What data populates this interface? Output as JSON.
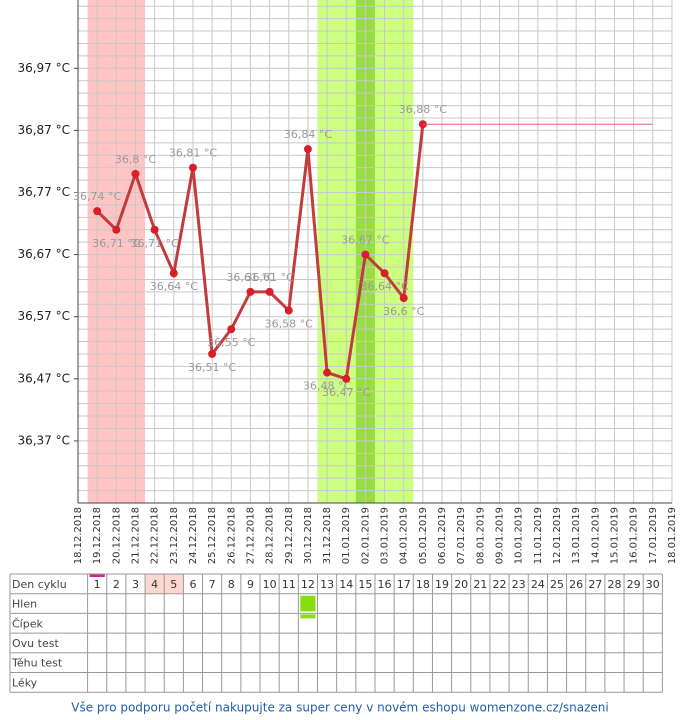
{
  "chart_data": {
    "type": "line",
    "x": [
      "18.12.2018",
      "19.12.2018",
      "20.12.2018",
      "21.12.2018",
      "22.12.2018",
      "23.12.2018",
      "24.12.2018",
      "25.12.2018",
      "26.12.2018",
      "27.12.2018",
      "28.12.2018",
      "29.12.2018",
      "30.12.2018",
      "31.12.2018",
      "01.01.2019",
      "02.01.2019",
      "03.01.2019",
      "04.01.2019",
      "05.01.2019",
      "06.01.2019",
      "07.01.2019",
      "08.01.2019",
      "09.01.2019",
      "10.01.2019",
      "11.01.2019",
      "12.01.2019",
      "13.01.2019",
      "14.01.2019",
      "15.01.2019",
      "16.01.2019",
      "17.01.2019",
      "18.01.2019"
    ],
    "series": [
      {
        "color": "#c23b3f",
        "marker_color": "#d81e28",
        "values": [
          null,
          36.74,
          36.71,
          36.8,
          36.71,
          36.64,
          36.81,
          36.51,
          36.55,
          36.61,
          36.61,
          36.58,
          36.84,
          36.48,
          36.47,
          36.67,
          36.64,
          36.6,
          36.88,
          null,
          null,
          null,
          null,
          null,
          null,
          null,
          null,
          null,
          null,
          null,
          null,
          null
        ],
        "value_labels": [
          null,
          "36,74 °C",
          "36,71 °C",
          "36,8 °C",
          "36,71 °C",
          "36,64 °C",
          "36,81 °C",
          "36,51 °C",
          "36,55 °C",
          "36,61 °C",
          "36,61 °C",
          "36,58 °C",
          "36,84 °C",
          "36,48 °C",
          "36,47 °C",
          "36,67 °C",
          "36,64 °C",
          "36,6 °C",
          "36,88 °C",
          null,
          null,
          null,
          null,
          null,
          null,
          null,
          null,
          null,
          null,
          null,
          null,
          null
        ]
      },
      {
        "color": "#e0606a",
        "projection": true,
        "values": [
          null,
          null,
          null,
          null,
          null,
          null,
          null,
          null,
          null,
          null,
          null,
          null,
          null,
          null,
          null,
          null,
          null,
          null,
          36.88,
          36.88,
          36.88,
          36.88,
          36.88,
          36.88,
          36.88,
          36.88,
          36.88,
          36.88,
          36.88,
          36.88,
          36.88,
          null
        ]
      }
    ],
    "bands": [
      {
        "from": 1,
        "to": 3,
        "color": "#ffc4c4"
      },
      {
        "from": 13,
        "to": 17,
        "color": "#ccff80"
      },
      {
        "from": 15,
        "to": 15,
        "color": "#99dd44"
      }
    ],
    "ylim": [
      36.27,
      37.08
    ],
    "yticks": [
      {
        "value": 36.37,
        "label": "36,37 °C"
      },
      {
        "value": 36.47,
        "label": "36,47 °C"
      },
      {
        "value": 36.57,
        "label": "36,57 °C"
      },
      {
        "value": 36.67,
        "label": "36,67 °C"
      },
      {
        "value": 36.77,
        "label": "36,77 °C"
      },
      {
        "value": 36.87,
        "label": "36,87 °C"
      },
      {
        "value": 36.97,
        "label": "36,97 °C"
      }
    ],
    "ygrid": [
      36.29,
      36.31,
      36.33,
      36.35,
      36.37,
      36.39,
      36.41,
      36.43,
      36.45,
      36.47,
      36.49,
      36.51,
      36.53,
      36.55,
      36.57,
      36.59,
      36.61,
      36.63,
      36.65,
      36.67,
      36.69,
      36.71,
      36.73,
      36.75,
      36.77,
      36.79,
      36.81,
      36.83,
      36.85,
      36.87,
      36.89,
      36.91,
      36.93,
      36.95,
      36.97,
      36.99,
      37.01,
      37.03,
      37.05,
      37.07
    ]
  },
  "table": {
    "row_labels": [
      "Den cyklu",
      "Hlen",
      "Čípek",
      "Ovu test",
      "Těhu test",
      "Léky"
    ],
    "days": [
      1,
      2,
      3,
      4,
      5,
      6,
      7,
      8,
      9,
      10,
      11,
      12,
      13,
      14,
      15,
      16,
      17,
      18,
      19,
      20,
      21,
      22,
      23,
      24,
      25,
      26,
      27,
      28,
      29,
      30
    ],
    "current_day": 1,
    "shaded_days": [
      4,
      5
    ],
    "entries": [
      {
        "row": 1,
        "day": 12,
        "kind": "square"
      },
      {
        "row": 2,
        "day": 12,
        "kind": "bar"
      }
    ]
  },
  "footer": "Vše pro podporu početí nakupujte za super ceny v novém eshopu womenzone.cz/snazeni"
}
